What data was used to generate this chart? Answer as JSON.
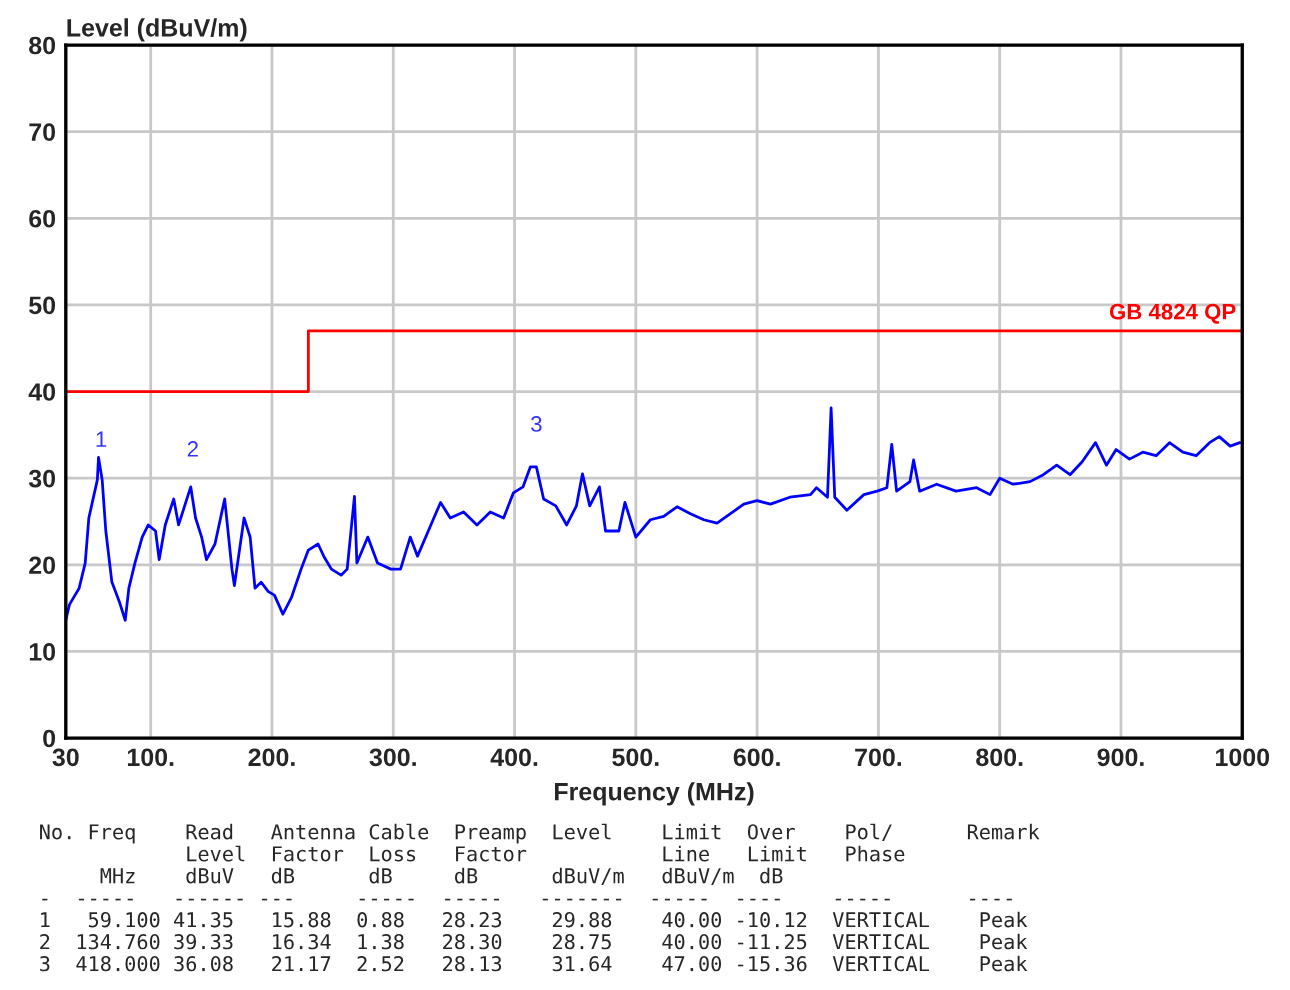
{
  "chart_data": {
    "type": "line",
    "xlabel": "Frequency (MHz)",
    "ylabel": "Level (dBuV/m)",
    "xlim": [
      30,
      1000
    ],
    "xticks": [
      30,
      {
        "value": 100,
        "label": "100."
      },
      {
        "value": 200,
        "label": "200."
      },
      {
        "value": 300,
        "label": "300."
      },
      {
        "value": 400,
        "label": "400."
      },
      {
        "value": 500,
        "label": "500."
      },
      {
        "value": 600,
        "label": "600."
      },
      {
        "value": 700,
        "label": "700."
      },
      {
        "value": 800,
        "label": "800."
      },
      {
        "value": 900,
        "label": "900."
      },
      1000
    ],
    "ylim": [
      0,
      80
    ],
    "yticks": [
      0,
      10,
      20,
      30,
      40,
      50,
      60,
      70,
      80
    ],
    "grid": true,
    "legend": false,
    "marker": "none",
    "line_style": "solid",
    "series": [
      {
        "color": "#0000ff",
        "x": [
          30,
          33,
          41,
          46,
          49,
          56,
          57,
          60,
          63,
          68,
          74,
          79,
          82,
          87,
          93,
          98,
          104,
          107,
          112,
          119,
          123,
          128,
          133,
          137,
          142,
          146,
          153,
          161,
          167,
          169,
          177,
          182,
          186,
          191,
          197,
          202,
          209,
          216,
          224,
          230,
          238,
          243,
          249,
          257,
          262,
          268,
          270,
          279,
          287,
          298,
          306,
          314,
          320,
          331,
          339,
          347,
          358,
          369,
          380,
          391,
          399,
          407,
          413,
          418,
          424,
          434,
          443,
          451,
          456,
          462,
          470,
          475,
          486,
          491,
          500,
          512,
          523,
          534,
          545,
          556,
          567,
          578,
          589,
          600,
          611,
          627,
          644,
          649,
          658,
          661,
          664,
          674,
          688,
          699,
          707,
          711,
          715,
          726,
          729,
          734,
          748,
          764,
          781,
          792,
          800,
          811,
          825,
          836,
          847,
          858,
          868,
          879,
          888,
          896,
          907,
          918,
          929,
          940,
          951,
          962,
          973,
          981,
          990,
          998
        ],
        "values": [
          13.6,
          15.4,
          17.3,
          20.2,
          25.4,
          29.8,
          32.4,
          29.8,
          23.9,
          18.0,
          15.8,
          13.6,
          17.3,
          20.2,
          23.2,
          24.6,
          23.9,
          20.6,
          24.6,
          27.6,
          24.6,
          26.8,
          29.0,
          25.4,
          23.2,
          20.6,
          22.4,
          27.6,
          19.5,
          17.6,
          25.4,
          23.2,
          17.3,
          18.0,
          16.9,
          16.5,
          14.3,
          16.2,
          19.5,
          21.7,
          22.4,
          20.9,
          19.5,
          18.8,
          19.5,
          27.9,
          20.2,
          23.2,
          20.2,
          19.5,
          19.5,
          23.2,
          21.0,
          24.6,
          27.2,
          25.4,
          26.1,
          24.6,
          26.1,
          25.4,
          28.3,
          29.0,
          31.3,
          31.3,
          27.6,
          26.8,
          24.6,
          26.8,
          30.5,
          26.8,
          29.0,
          23.9,
          23.9,
          27.2,
          23.2,
          25.2,
          25.6,
          26.7,
          25.9,
          25.2,
          24.8,
          25.9,
          27.0,
          27.4,
          27.0,
          27.8,
          28.1,
          28.9,
          27.8,
          38.1,
          27.8,
          26.3,
          28.1,
          28.5,
          28.9,
          33.9,
          28.5,
          29.6,
          32.1,
          28.5,
          29.3,
          28.5,
          28.9,
          28.1,
          30.0,
          29.3,
          29.6,
          30.4,
          31.5,
          30.4,
          31.9,
          34.1,
          31.5,
          33.3,
          32.2,
          33.0,
          32.6,
          34.1,
          33.0,
          32.6,
          34.1,
          34.8,
          33.7,
          34.1
        ]
      },
      {
        "type": "step",
        "name": "GB 4824 QP",
        "color": "#ff0000",
        "x": [
          30,
          230,
          1000
        ],
        "values": [
          40,
          47,
          47
        ]
      }
    ],
    "annotations": [
      {
        "text": "1",
        "x": 59.1,
        "y": 29.88
      },
      {
        "text": "2",
        "x": 134.76,
        "y": 28.75
      },
      {
        "text": "3",
        "x": 418.0,
        "y": 31.64
      },
      "No. Freq    Read   Antenna Cable  Preamp  Level    Limit  Over    Pol/      Remark",
      "            Level  Factor  Loss   Factor           Line   Limit   Phase",
      "     MHz    dBuV   dB      dB     dB      dBuV/m   dBuV/m  dB",
      "-  -----   ------ ---     -----  -----   -------  -----  ----    -----      ----",
      "1   59.100 41.35   15.88  0.88   28.23    29.88    40.00 -10.12  VERTICAL    Peak",
      "2  134.760 39.33   16.34  1.38   28.30    28.75    40.00 -11.25  VERTICAL    Peak",
      "3  418.000 36.08   21.17  2.52   28.13    31.64    47.00 -15.36  VERTICAL    Peak"
    ]
  }
}
